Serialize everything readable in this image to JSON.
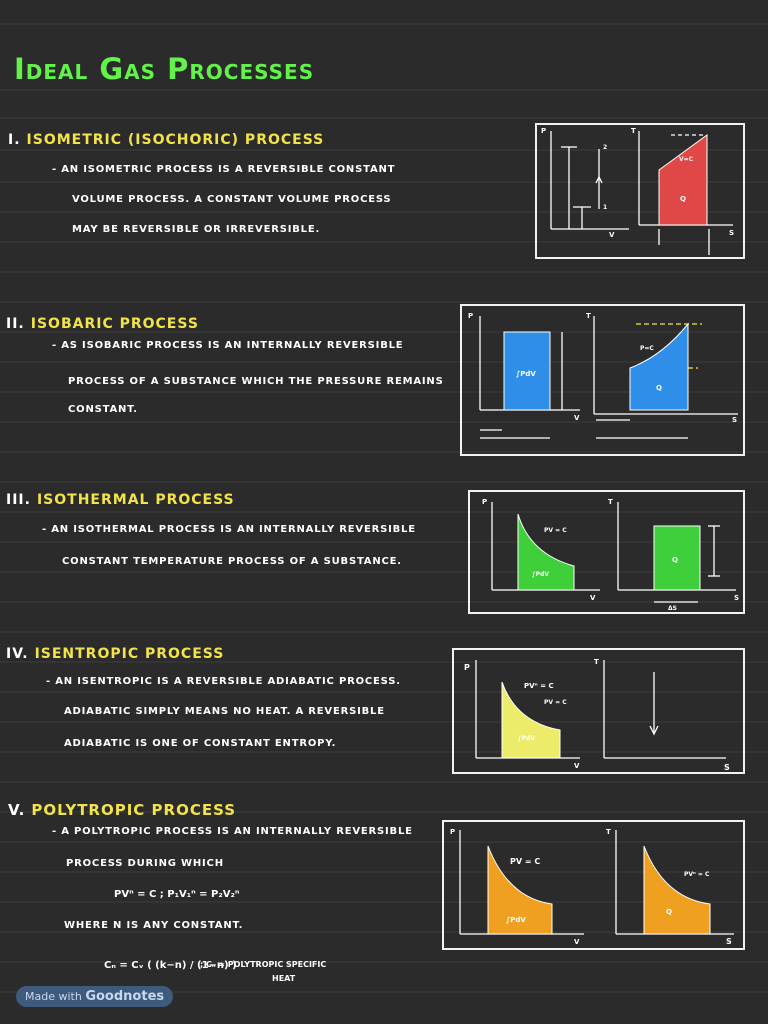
{
  "title": "Ideal Gas Processes",
  "sections": [
    {
      "num": "I.",
      "heading": "ISOMETRIC (ISOCHORIC) PROCESS",
      "lines": [
        "- AN ISOMETRIC PROCESS IS A REVERSIBLE CONSTANT",
        "VOLUME PROCESS. A CONSTANT VOLUME PROCESS",
        "MAY BE REVERSIBLE OR IRREVERSIBLE."
      ]
    },
    {
      "num": "II.",
      "heading": "ISOBARIC PROCESS",
      "lines": [
        "- AS ISOBARIC PROCESS IS AN INTERNALLY REVERSIBLE",
        "PROCESS OF A SUBSTANCE WHICH THE PRESSURE REMAINS",
        "CONSTANT."
      ]
    },
    {
      "num": "III.",
      "heading": "ISOTHERMAL PROCESS",
      "lines": [
        "- AN ISOTHERMAL PROCESS IS AN INTERNALLY REVERSIBLE",
        "CONSTANT TEMPERATURE PROCESS OF A SUBSTANCE."
      ]
    },
    {
      "num": "IV.",
      "heading": "ISENTROPIC PROCESS",
      "lines": [
        "- AN ISENTROPIC IS A REVERSIBLE ADIABATIC PROCESS.",
        "ADIABATIC SIMPLY MEANS NO HEAT. A REVERSIBLE",
        "ADIABATIC IS ONE OF CONSTANT ENTROPY."
      ]
    },
    {
      "num": "V.",
      "heading": "POLYTROPIC PROCESS",
      "lines": [
        "- A POLYTROPIC PROCESS IS AN INTERNALLY REVERSIBLE",
        "PROCESS DURING WHICH",
        "WHERE n IS ANY CONSTANT."
      ]
    }
  ],
  "formulas": {
    "poly1": "PVⁿ = C ;  P₁V₁ⁿ = P₂V₂ⁿ",
    "cn": "Cₙ = Cᵥ ( (k−n) / (1−n) )",
    "cn_note": "; Cₙ = POLYTROPIC SPECIFIC",
    "cn_note2": "HEAT"
  },
  "diagram_labels": {
    "p": "P",
    "t": "T",
    "v": "V",
    "s": "S",
    "one": "1",
    "two": "2",
    "pvc": "PV = C",
    "pdv": "∫PdV",
    "q": "Q",
    "pvn": "PVⁿ = C",
    "tn": "Tₙ",
    "vc": "V=C",
    "pc": "P=C",
    "ds": "ΔS"
  },
  "footer": {
    "prefix": "Made with",
    "brand": "Goodnotes"
  },
  "colors": {
    "title": "#62f24a",
    "heading": "#f3e34a",
    "isometric": "#e04848",
    "isobaric": "#2f8fe8",
    "isothermal": "#3fcf3a",
    "isentropic": "#ecec6a",
    "polytropic": "#f0a020"
  }
}
